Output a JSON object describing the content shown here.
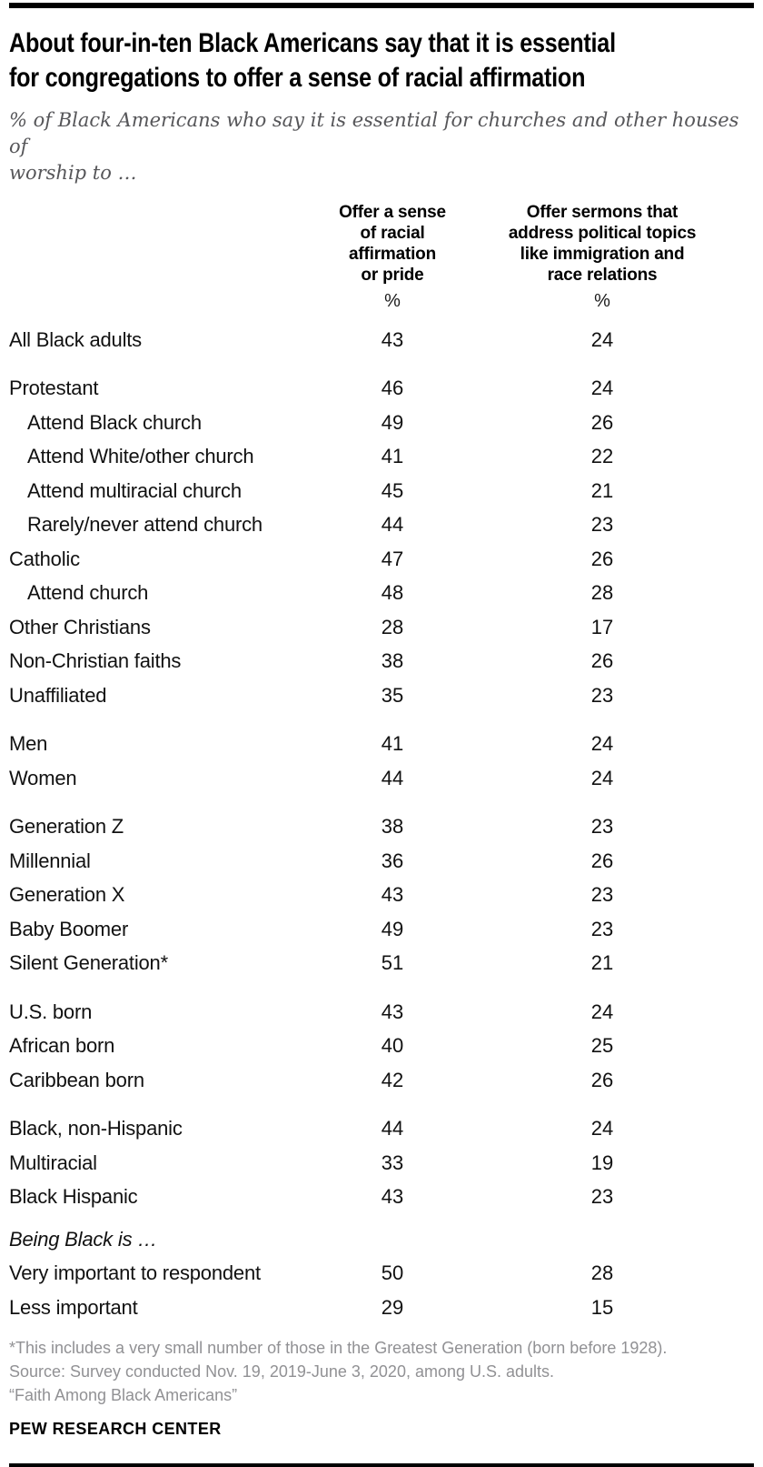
{
  "header": {
    "title": "About four-in-ten Black Americans say that it is essential\nfor congregations to offer a sense of racial affirmation",
    "subtitle": "% of Black Americans who say it is essential for churches and other houses of\nworship to …"
  },
  "chart_data": {
    "type": "table",
    "title": "About four-in-ten Black Americans say that it is essential for congregations to offer a sense of racial affirmation",
    "subtitle": "% of Black Americans who say it is essential for churches and other houses of worship to …",
    "columns": [
      {
        "label": "Offer a sense\nof racial\naffirmation\nor pride",
        "unit": "%"
      },
      {
        "label": "Offer sermons that\naddress political topics\nlike immigration and\nrace relations",
        "unit": "%"
      }
    ],
    "rows": [
      {
        "label": "All Black adults",
        "values": [
          43,
          24
        ]
      },
      {
        "label": "Protestant",
        "values": [
          46,
          24
        ],
        "section_start": true
      },
      {
        "label": "Attend Black church",
        "values": [
          49,
          26
        ],
        "indent": true
      },
      {
        "label": "Attend White/other church",
        "values": [
          41,
          22
        ],
        "indent": true
      },
      {
        "label": "Attend multiracial church",
        "values": [
          45,
          21
        ],
        "indent": true
      },
      {
        "label": "Rarely/never attend church",
        "values": [
          44,
          23
        ],
        "indent": true
      },
      {
        "label": "Catholic",
        "values": [
          47,
          26
        ]
      },
      {
        "label": "Attend church",
        "values": [
          48,
          28
        ],
        "indent": true
      },
      {
        "label": "Other Christians",
        "values": [
          28,
          17
        ]
      },
      {
        "label": "Non-Christian faiths",
        "values": [
          38,
          26
        ]
      },
      {
        "label": "Unaffiliated",
        "values": [
          35,
          23
        ]
      },
      {
        "label": "Men",
        "values": [
          41,
          24
        ],
        "section_start": true
      },
      {
        "label": "Women",
        "values": [
          44,
          24
        ]
      },
      {
        "label": "Generation Z",
        "values": [
          38,
          23
        ],
        "section_start": true
      },
      {
        "label": "Millennial",
        "values": [
          36,
          26
        ]
      },
      {
        "label": "Generation X",
        "values": [
          43,
          23
        ]
      },
      {
        "label": "Baby Boomer",
        "values": [
          49,
          23
        ]
      },
      {
        "label": "Silent Generation*",
        "values": [
          51,
          21
        ]
      },
      {
        "label": "U.S. born",
        "values": [
          43,
          24
        ],
        "section_start": true
      },
      {
        "label": "African born",
        "values": [
          40,
          25
        ]
      },
      {
        "label": "Caribbean born",
        "values": [
          42,
          26
        ]
      },
      {
        "label": "Black, non-Hispanic",
        "values": [
          44,
          24
        ],
        "section_start": true
      },
      {
        "label": "Multiracial",
        "values": [
          33,
          19
        ]
      },
      {
        "label": "Black Hispanic",
        "values": [
          43,
          23
        ]
      },
      {
        "label": "Being Black is …",
        "values": null,
        "style": "italic-heading",
        "small_gap": true
      },
      {
        "label": "Very important to respondent",
        "values": [
          50,
          28
        ]
      },
      {
        "label": "Less important",
        "values": [
          29,
          15
        ]
      }
    ]
  },
  "footer": {
    "notes": [
      "*This includes a very small number of those in the Greatest Generation (born before 1928).",
      "Source: Survey conducted Nov. 19, 2019-June 3, 2020, among U.S. adults.",
      "“Faith Among Black Americans”"
    ],
    "brand": "PEW RESEARCH CENTER"
  }
}
